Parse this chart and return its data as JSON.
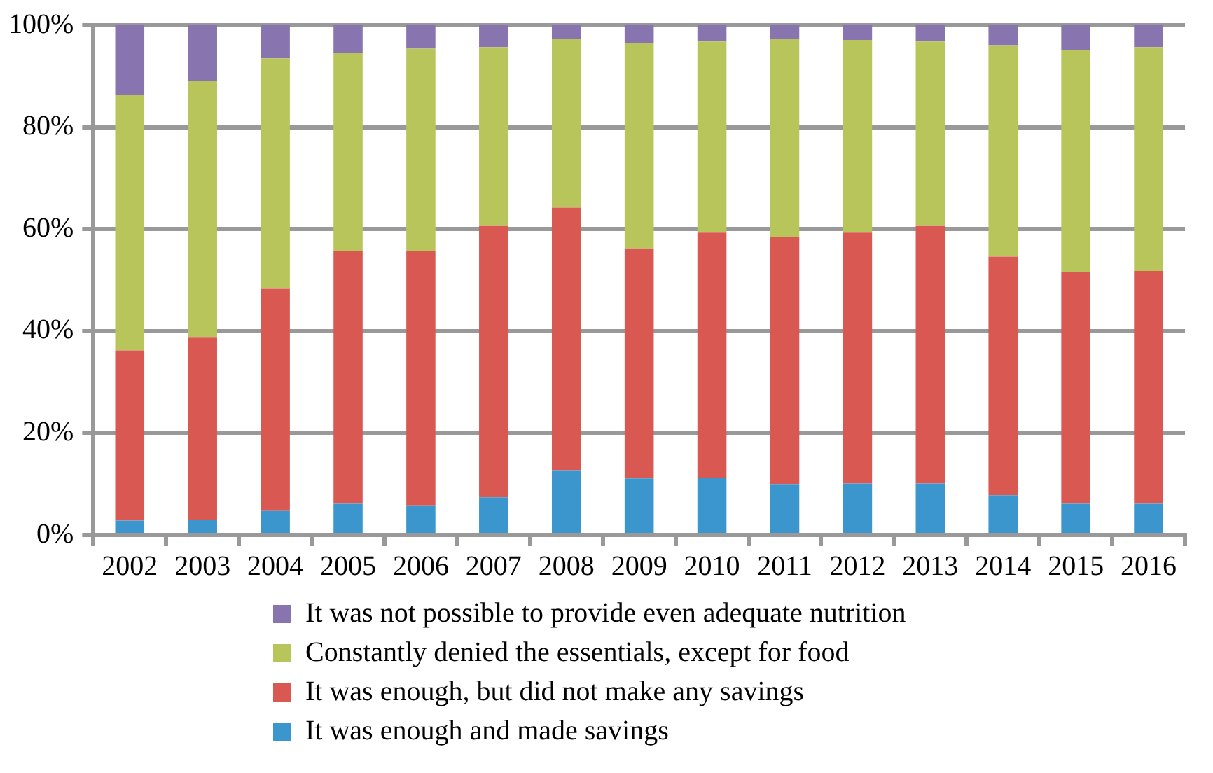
{
  "chart_data": {
    "type": "bar",
    "stacked": true,
    "categories": [
      "2002",
      "2003",
      "2004",
      "2005",
      "2006",
      "2007",
      "2008",
      "2009",
      "2010",
      "2011",
      "2012",
      "2013",
      "2014",
      "2015",
      "2016"
    ],
    "series": [
      {
        "name": "It was enough and made savings",
        "color": "#3a96cd",
        "values": [
          2.8,
          3.0,
          4.7,
          6.1,
          5.8,
          7.4,
          12.7,
          11.1,
          11.2,
          10.0,
          10.1,
          10.1,
          7.8,
          6.1,
          6.1
        ]
      },
      {
        "name": "It was enough, but did not make any savings",
        "color": "#d95852",
        "values": [
          33.4,
          35.7,
          43.6,
          49.6,
          49.9,
          53.2,
          51.5,
          45.1,
          48.1,
          48.4,
          49.2,
          50.5,
          46.8,
          45.5,
          45.7
        ]
      },
      {
        "name": "Constantly denied the essentials, except for food",
        "color": "#b7c55b",
        "values": [
          50.2,
          50.4,
          45.2,
          38.9,
          39.7,
          35.1,
          33.1,
          40.3,
          37.5,
          38.9,
          37.8,
          36.2,
          41.5,
          43.6,
          43.9
        ]
      },
      {
        "name": "It was not possible to provide even adequate nutrition",
        "color": "#8874ae",
        "values": [
          13.6,
          10.9,
          6.5,
          5.4,
          4.6,
          4.3,
          2.7,
          3.5,
          3.2,
          2.7,
          2.9,
          3.2,
          3.9,
          4.8,
          4.3
        ]
      }
    ],
    "ylim": [
      0,
      100
    ],
    "yticks": [
      {
        "value": 0,
        "label": "0%"
      },
      {
        "value": 20,
        "label": "20%"
      },
      {
        "value": 40,
        "label": "40%"
      },
      {
        "value": 60,
        "label": "60%"
      },
      {
        "value": 80,
        "label": "80%"
      },
      {
        "value": 100,
        "label": "100%"
      }
    ],
    "grid": "y",
    "legend": "bottom"
  }
}
